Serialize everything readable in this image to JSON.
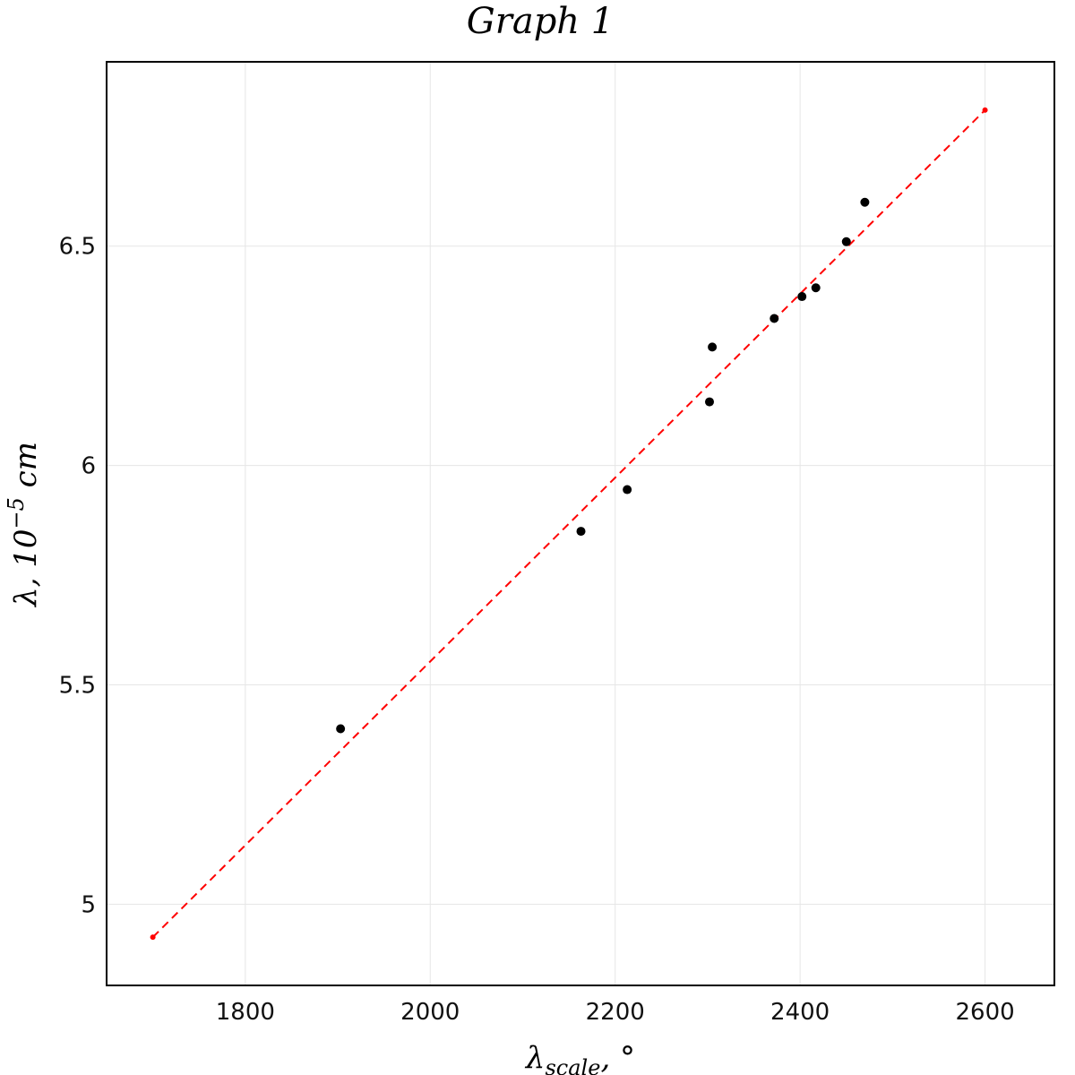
{
  "chart_data": {
    "type": "scatter",
    "title": "Graph 1",
    "xlabel": {
      "main": "λ",
      "sub": "scale",
      "suffix": ", °"
    },
    "ylabel": {
      "main": "λ, 10",
      "sup": "−5",
      "suffix": " cm"
    },
    "xlim": [
      1650,
      2675
    ],
    "ylim": [
      4.815,
      6.92
    ],
    "xticks": [
      1800,
      2000,
      2200,
      2400,
      2600
    ],
    "yticks": [
      5,
      5.5,
      6,
      6.5
    ],
    "ytick_labels": [
      "5",
      "5.5",
      "6",
      "6.5"
    ],
    "grid": true,
    "points": [
      {
        "x": 1903,
        "y": 5.4
      },
      {
        "x": 2163,
        "y": 5.85
      },
      {
        "x": 2213,
        "y": 5.945
      },
      {
        "x": 2302,
        "y": 6.145
      },
      {
        "x": 2305,
        "y": 6.27
      },
      {
        "x": 2372,
        "y": 6.335
      },
      {
        "x": 2402,
        "y": 6.385
      },
      {
        "x": 2417,
        "y": 6.405
      },
      {
        "x": 2450,
        "y": 6.51
      },
      {
        "x": 2470,
        "y": 6.6
      }
    ],
    "fit_line": {
      "x": [
        1700,
        2600
      ],
      "y": [
        4.925,
        6.81
      ],
      "color": "#ff0000",
      "style": "dashed"
    },
    "point_color": "#000000"
  }
}
